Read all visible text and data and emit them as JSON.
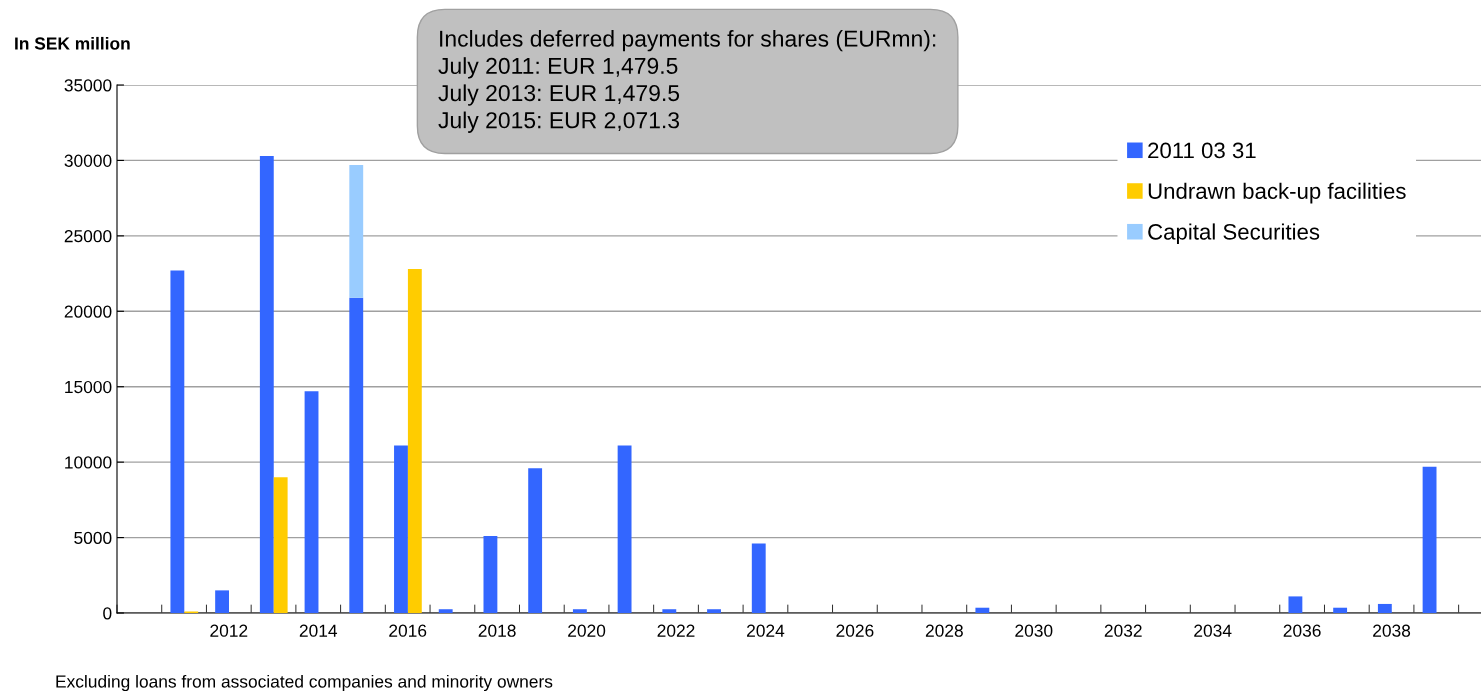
{
  "chart_data": {
    "type": "bar",
    "ylabel": "In SEK million",
    "categories": [
      null,
      null,
      "2012",
      null,
      "2014",
      null,
      "2016",
      null,
      "2018",
      null,
      "2020",
      null,
      "2022",
      null,
      "2024",
      null,
      "2026",
      null,
      "2028",
      null,
      "2030",
      null,
      "2032",
      null,
      "2034",
      null,
      "2036",
      null,
      "2038",
      null,
      null
    ],
    "series": [
      {
        "name": "2011 03 31",
        "color": "#3366ff",
        "values": [
          null,
          22700,
          1500,
          30300,
          14700,
          20900,
          11100,
          250,
          5100,
          9600,
          250,
          11100,
          250,
          250,
          4600,
          0,
          0,
          0,
          0,
          350,
          0,
          0,
          0,
          0,
          0,
          0,
          1100,
          350,
          600,
          9700,
          null
        ]
      },
      {
        "name": "Undrawn back-up facilities",
        "color": "#ffcc00",
        "values": [
          null,
          100,
          null,
          9000,
          null,
          null,
          22800,
          null,
          null,
          null,
          null,
          null,
          null,
          null,
          null,
          null,
          null,
          null,
          null,
          null,
          null,
          null,
          null,
          null,
          null,
          null,
          null,
          null,
          null,
          null,
          null
        ]
      },
      {
        "name": "Capital Securities",
        "color": "#99ccff",
        "values": [
          null,
          null,
          null,
          null,
          null,
          8800,
          null,
          null,
          null,
          null,
          null,
          null,
          null,
          null,
          null,
          null,
          null,
          null,
          null,
          null,
          null,
          null,
          null,
          null,
          null,
          null,
          null,
          null,
          null,
          null,
          null
        ],
        "base": [
          null,
          null,
          null,
          null,
          null,
          20900,
          null,
          null,
          null,
          null,
          null,
          null,
          null,
          null,
          null,
          null,
          null,
          null,
          null,
          null,
          null,
          null,
          null,
          null,
          null,
          null,
          null,
          null,
          null,
          null,
          null
        ]
      }
    ],
    "ylim": [
      0,
      35000
    ],
    "yticks": [
      0,
      5000,
      10000,
      15000,
      20000,
      25000,
      30000,
      35000
    ],
    "grid": "y",
    "legend": "top right",
    "annotations": [
      "Includes deferred payments for shares (EURmn):\nJuly 2011: EUR 1,479.5\nJuly 2013: EUR 1,479.5\nJuly 2015: EUR 2,071.3",
      "Excluding loans from associated companies and minority owners"
    ]
  }
}
